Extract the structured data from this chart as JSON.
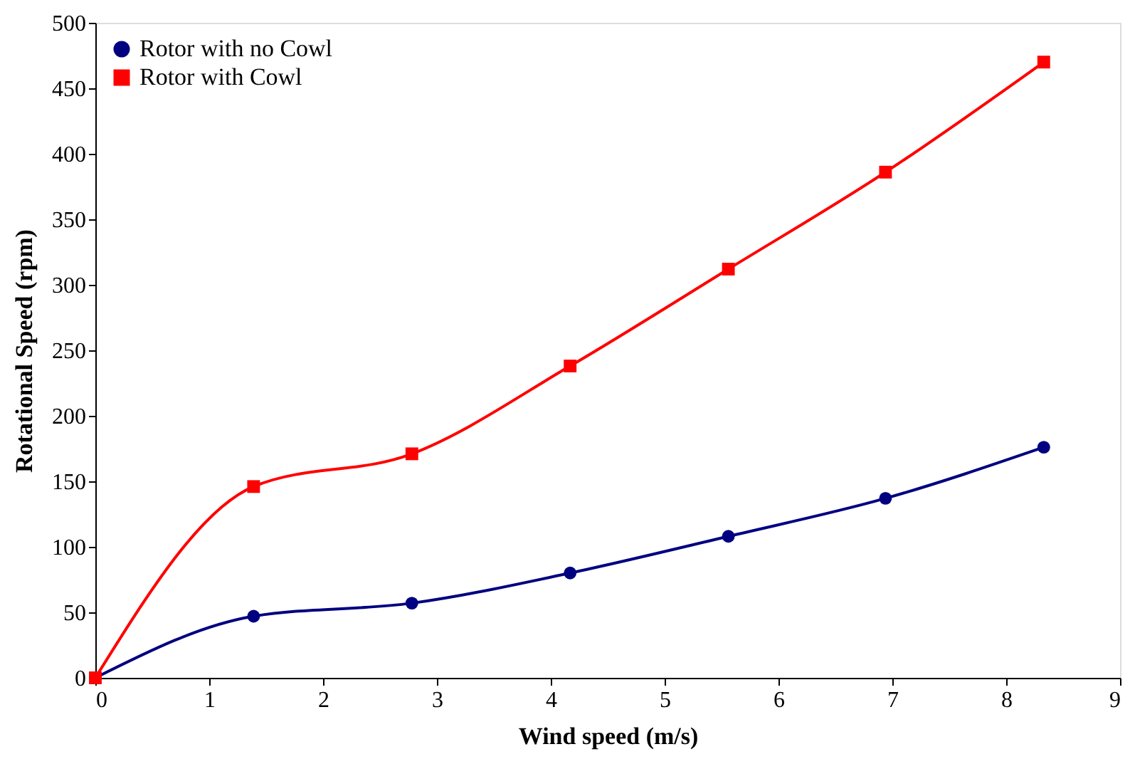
{
  "chart_data": {
    "type": "line",
    "xlabel": "Wind speed (m/s)",
    "ylabel": "Rotational Speed (rpm)",
    "xlim": [
      0,
      9
    ],
    "xticks": [
      0,
      1,
      2,
      3,
      4,
      5,
      6,
      7,
      8,
      9
    ],
    "ylim": [
      0,
      500
    ],
    "yticks": [
      0,
      50,
      100,
      150,
      200,
      250,
      300,
      350,
      400,
      450,
      500
    ],
    "grid": false,
    "legend": "top left",
    "line_style": "solid",
    "series": [
      {
        "name": "Rotor with no Cowl",
        "color": "#000080",
        "marker": "circle",
        "x": [
          0,
          1.39,
          2.78,
          4.17,
          5.56,
          6.94,
          8.33
        ],
        "values": [
          0,
          47,
          57,
          80,
          108,
          137,
          176
        ]
      },
      {
        "name": "Rotor with Cowl",
        "color": "#ff0000",
        "marker": "square",
        "x": [
          0,
          1.39,
          2.78,
          4.17,
          5.56,
          6.94,
          8.33
        ],
        "values": [
          0,
          146,
          171,
          238,
          312,
          386,
          470
        ]
      }
    ]
  }
}
